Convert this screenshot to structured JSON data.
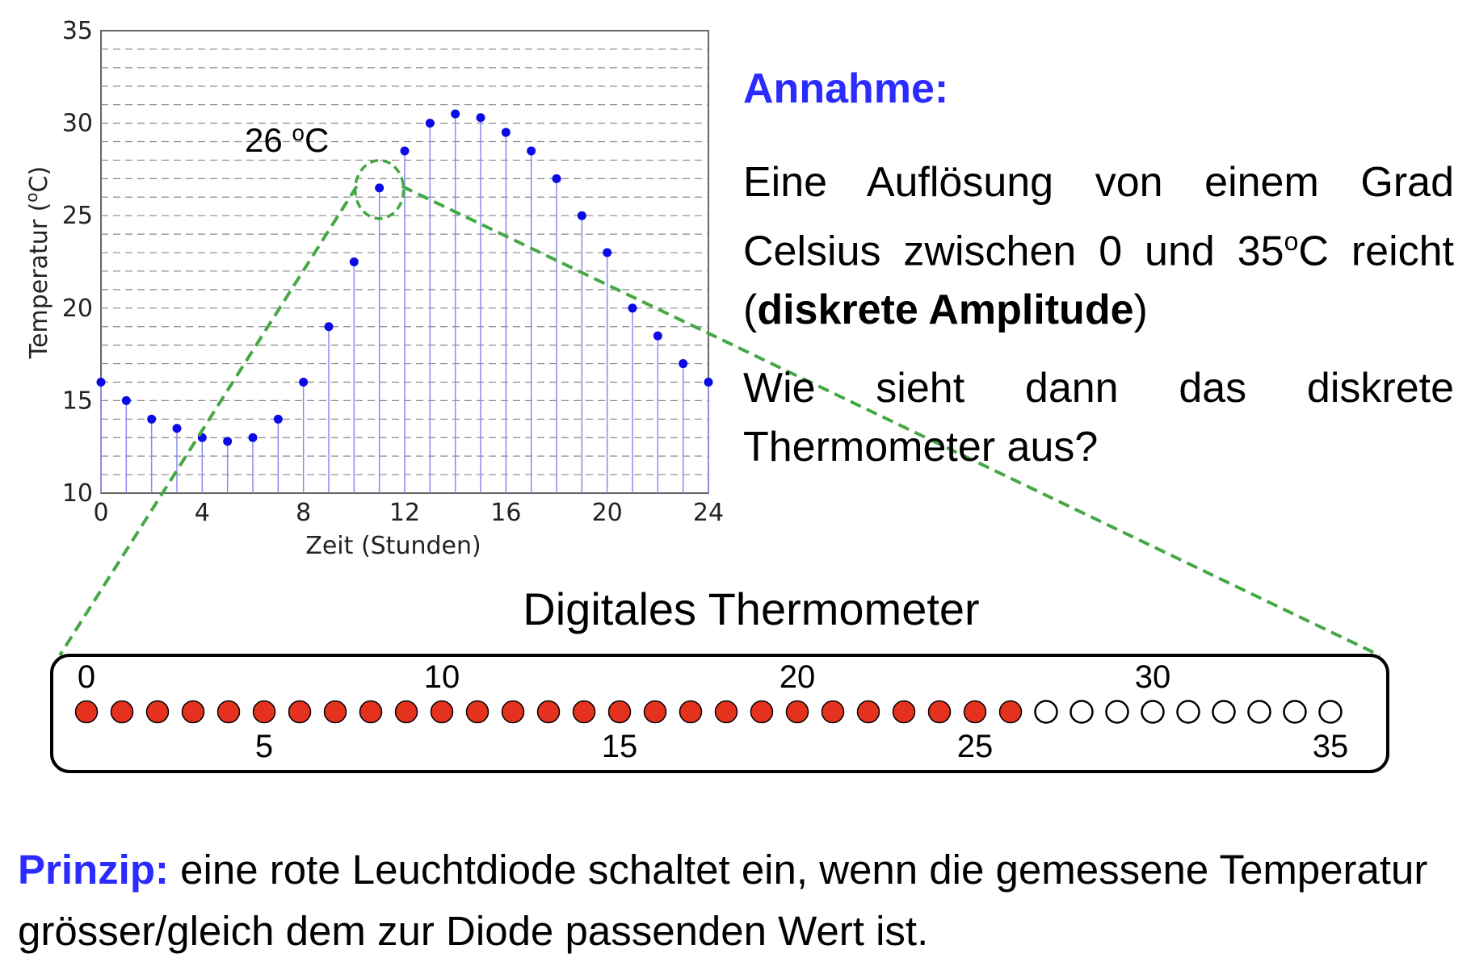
{
  "chart_data": {
    "type": "stem",
    "x": [
      0,
      1,
      2,
      3,
      4,
      5,
      6,
      7,
      8,
      9,
      10,
      11,
      12,
      13,
      14,
      15,
      16,
      17,
      18,
      19,
      20,
      21,
      22,
      23,
      24
    ],
    "y": [
      16,
      15,
      14,
      13.5,
      13,
      12.8,
      13,
      14,
      16,
      19,
      22.5,
      26.5,
      28.5,
      30,
      30.5,
      30.3,
      29.5,
      28.5,
      27,
      25,
      23,
      20,
      18.5,
      17,
      16
    ],
    "xlabel": "Zeit (Stunden)",
    "ylabel": "Temperatur (",
    "ylabel_sup": "o",
    "ylabel_tail": "C)",
    "xlim": [
      0,
      24
    ],
    "ylim": [
      10,
      35
    ],
    "xticks": [
      0,
      4,
      8,
      12,
      16,
      20,
      24
    ],
    "yticks": [
      10,
      15,
      20,
      25,
      30,
      35
    ],
    "grid": "dashed horizontal lines every 1",
    "highlight_index": 11,
    "annotation": {
      "value": "26 ",
      "sup": "o",
      "unit": "C"
    },
    "marker_color": "#0a0ae6",
    "stem_color": "#8a8af0",
    "highlight_color": "#45a845"
  },
  "thermometer": {
    "title": "Digitales Thermometer",
    "min": 0,
    "max": 35,
    "lit_through": 26,
    "top_labels": [
      "0",
      "10",
      "20",
      "30"
    ],
    "bottom_labels": [
      "5",
      "15",
      "25",
      "35"
    ],
    "lit_color": "#e5321e",
    "off_color": "#ffffff"
  },
  "text": {
    "annahme": "Annahme:",
    "para1_a": "Eine Auflösung von einem Grad Celsius zwischen 0 und 35",
    "para1_sup": "o",
    "para1_b": "C reicht (",
    "para1_bold": "diskrete Amplitude",
    "para1_c": ")",
    "para2": "Wie sieht dann das diskrete Thermometer aus?",
    "principle_label": "Prinzip:",
    "principle_text": " eine rote Leuchtdiode schaltet ein, wenn die gemessene Temperatur grösser/gleich dem zur Diode passenden Wert ist."
  }
}
